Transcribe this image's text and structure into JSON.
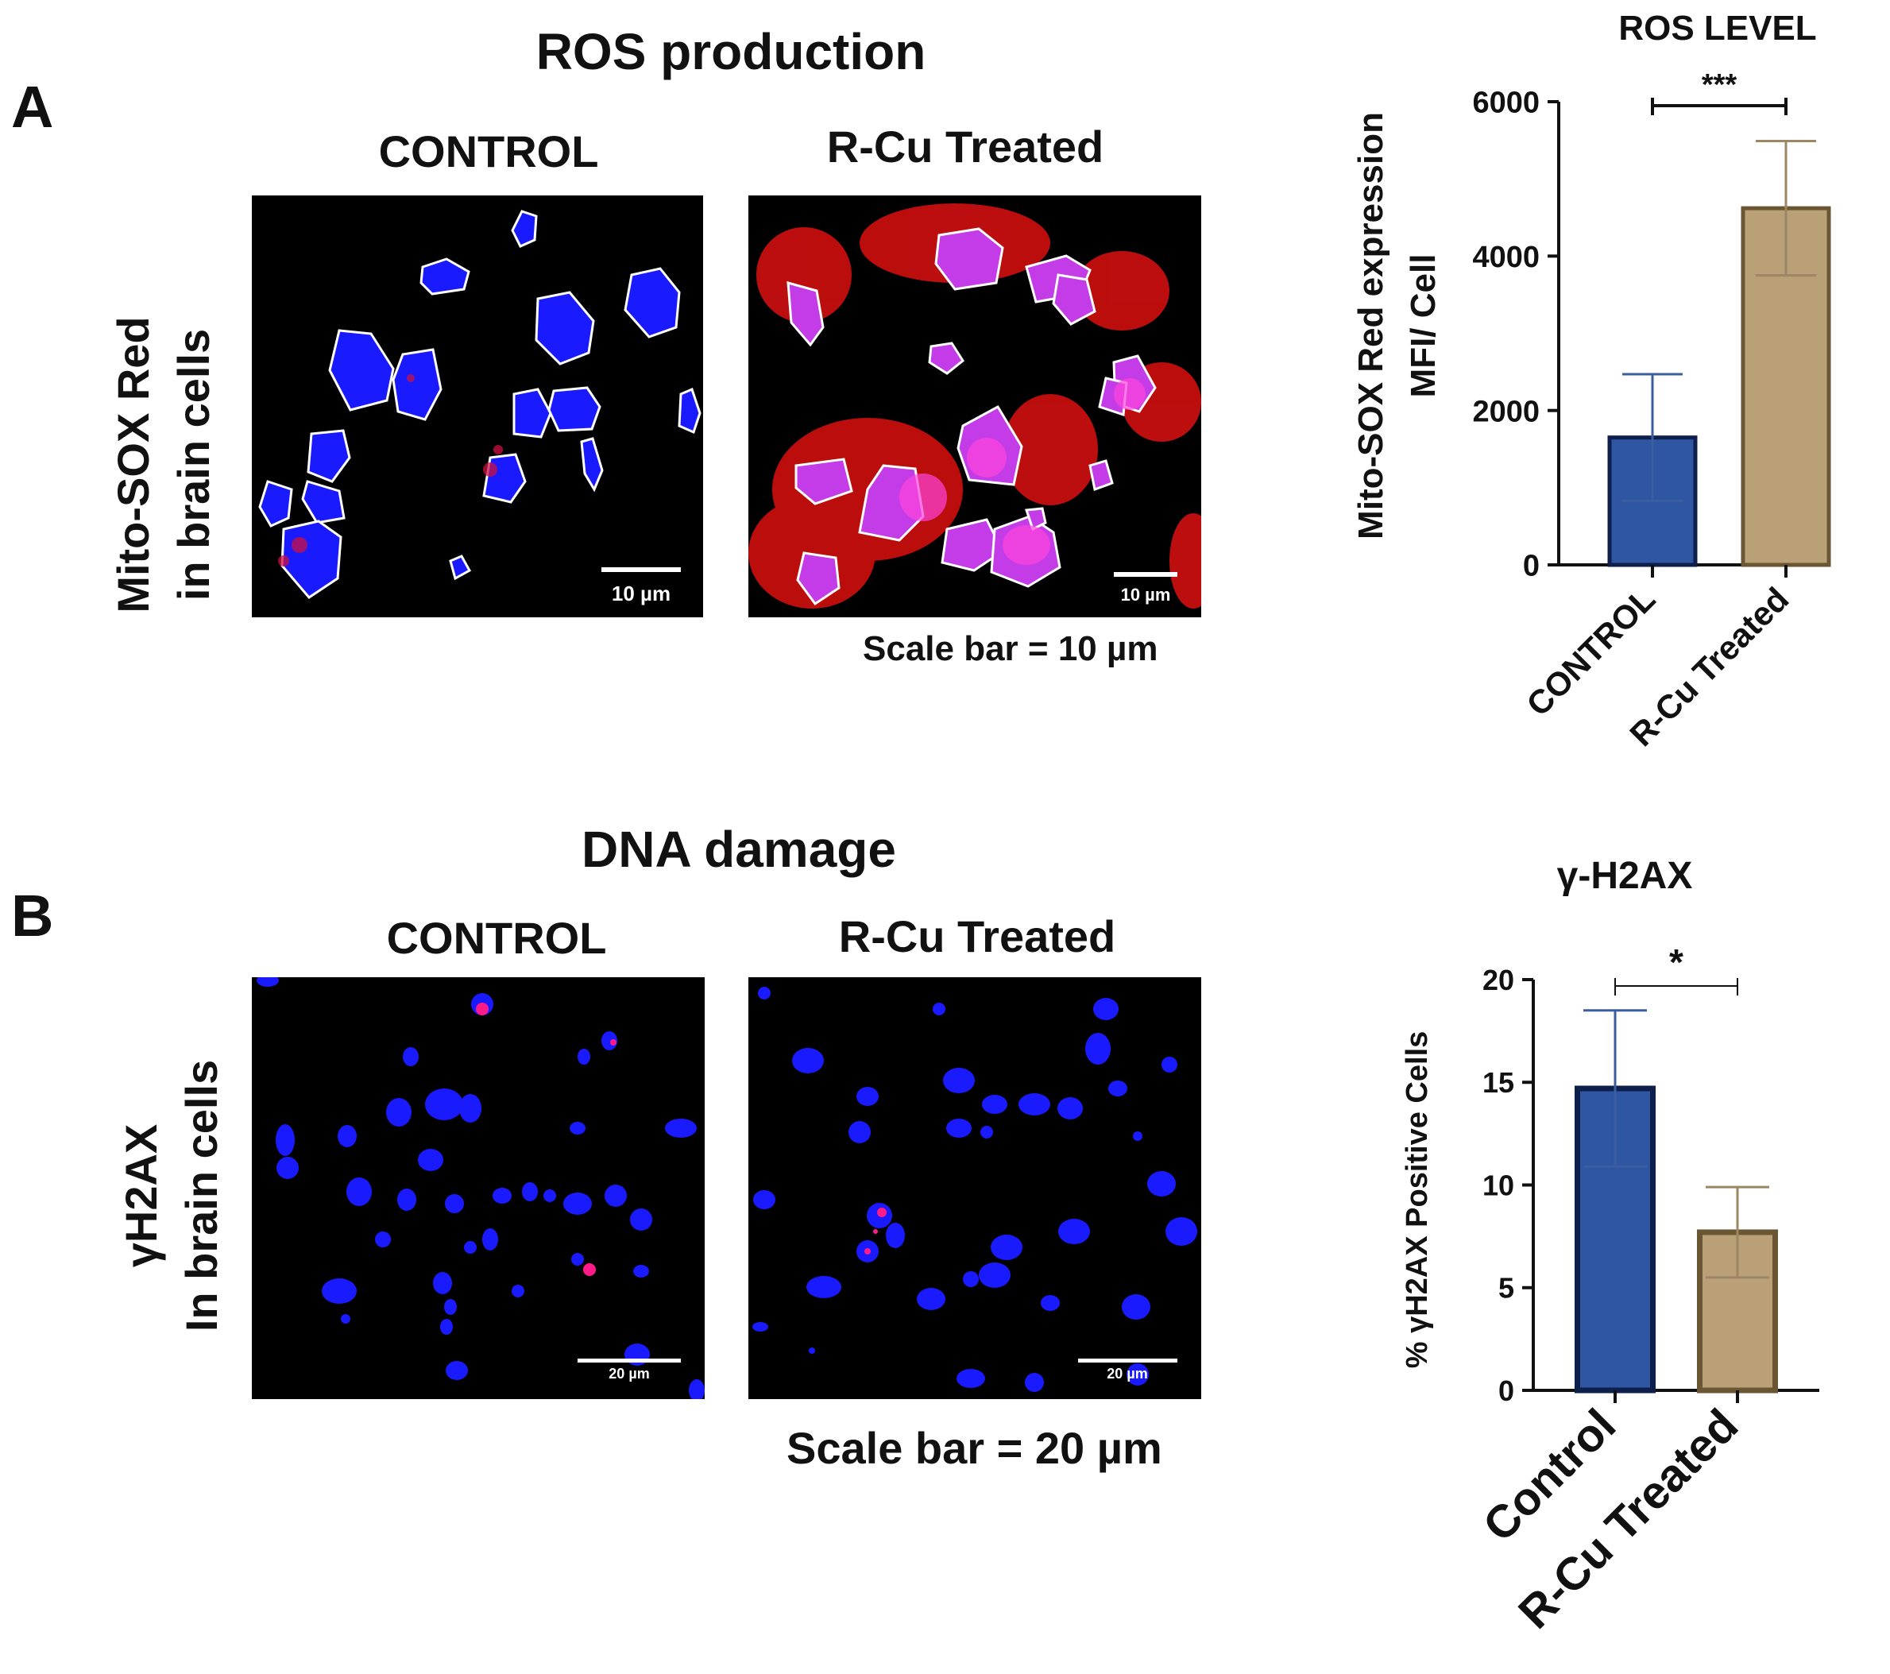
{
  "panelA": {
    "letter": "A",
    "title": "ROS production",
    "col_control": "CONTROL",
    "col_treated": "R-Cu Treated",
    "row_label_1": "Mito-SOX Red",
    "row_label_2": "in brain cells",
    "scalebar_label": "10 µm",
    "scale_note": "Scale bar = 10 µm"
  },
  "panelB": {
    "letter": "B",
    "title": "DNA damage",
    "col_control": "CONTROL",
    "col_treated": "R-Cu Treated",
    "row_label_1": "γH2AX",
    "row_label_2": "In brain cells",
    "scalebar_label": "20 µm",
    "scale_note": "Scale bar = 20 µm"
  },
  "chart_data": [
    {
      "type": "bar",
      "title": "ROS LEVEL",
      "ylabel_line1": "Mito-SOX Red expression",
      "ylabel_line2": "MFI/ Cell",
      "categories": [
        "CONTROL",
        "R-Cu Treated"
      ],
      "values": [
        1650,
        4620
      ],
      "errors": [
        820,
        870
      ],
      "ylim": [
        0,
        6000
      ],
      "yticks": [
        "0",
        "2000",
        "4000",
        "6000"
      ],
      "significance": "***",
      "colors": [
        "#2e56a3",
        "#b9a077"
      ],
      "edge_colors": [
        "#0d1f4a",
        "#6b5633"
      ]
    },
    {
      "type": "bar",
      "title": "γ-H2AX",
      "ylabel": "% γH2AX Positive Cells",
      "categories": [
        "Control",
        "R-Cu Treated"
      ],
      "values": [
        14.7,
        7.7
      ],
      "errors": [
        3.8,
        2.2
      ],
      "ylim": [
        0,
        20
      ],
      "yticks": [
        "0",
        "5",
        "10",
        "15",
        "20"
      ],
      "significance": "*",
      "colors": [
        "#2e56a3",
        "#b9a077"
      ],
      "edge_colors": [
        "#0d1f4a",
        "#6b5633"
      ]
    }
  ]
}
